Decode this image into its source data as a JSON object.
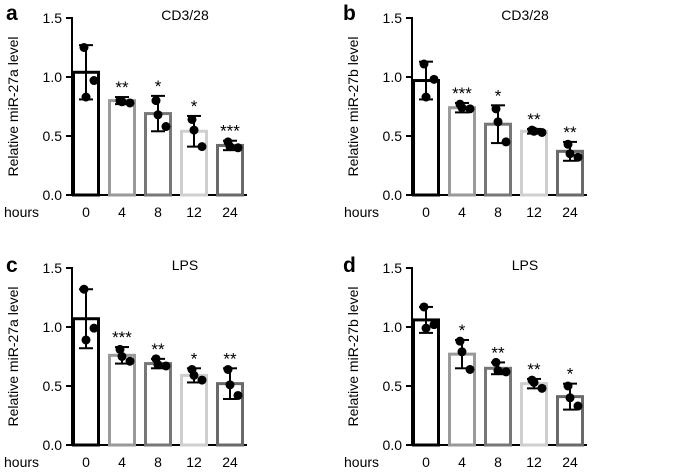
{
  "figure": {
    "x_prefix_label": "hours"
  },
  "chart_data": [
    {
      "type": "bar",
      "panel": "a",
      "title": "CD3/28",
      "ylabel": "Relative miR-27a level",
      "categories": [
        "0",
        "4",
        "8",
        "12",
        "24"
      ],
      "ylim": [
        0,
        1.5
      ],
      "yticks": [
        "0.0",
        "0.5",
        "1.0",
        "1.5"
      ],
      "values": [
        1.04,
        0.8,
        0.69,
        0.54,
        0.42
      ],
      "error": [
        0.23,
        0.03,
        0.15,
        0.13,
        0.04
      ],
      "points": [
        [
          1.25,
          0.97,
          0.83
        ],
        [
          0.8,
          0.78,
          0.79
        ],
        [
          0.8,
          0.58,
          0.68
        ],
        [
          0.64,
          0.41,
          0.55
        ],
        [
          0.45,
          0.4,
          0.41
        ]
      ],
      "significance": [
        "",
        "**",
        "*",
        "*",
        "***"
      ],
      "bar_colors": [
        "#000000",
        "#9a9a9a",
        "#777777",
        "#cfcfcf",
        "#6a6a6a"
      ]
    },
    {
      "type": "bar",
      "panel": "b",
      "title": "CD3/28",
      "ylabel": "Relative miR-27b level",
      "categories": [
        "0",
        "4",
        "8",
        "12",
        "24"
      ],
      "ylim": [
        0,
        1.5
      ],
      "yticks": [
        "0.0",
        "0.5",
        "1.0",
        "1.5"
      ],
      "values": [
        0.97,
        0.74,
        0.6,
        0.54,
        0.37
      ],
      "error": [
        0.16,
        0.04,
        0.16,
        0.02,
        0.08
      ],
      "points": [
        [
          1.11,
          0.98,
          0.83
        ],
        [
          0.77,
          0.73,
          0.74
        ],
        [
          0.73,
          0.45,
          0.62
        ],
        [
          0.55,
          0.53,
          0.54
        ],
        [
          0.43,
          0.32,
          0.35
        ]
      ],
      "significance": [
        "",
        "***",
        "*",
        "**",
        "**"
      ],
      "bar_colors": [
        "#000000",
        "#9a9a9a",
        "#777777",
        "#cfcfcf",
        "#6a6a6a"
      ]
    },
    {
      "type": "bar",
      "panel": "c",
      "title": "LPS",
      "ylabel": "Relative miR-27a level",
      "categories": [
        "0",
        "4",
        "8",
        "12",
        "24"
      ],
      "ylim": [
        0,
        1.5
      ],
      "yticks": [
        "0.0",
        "0.5",
        "1.0",
        "1.5"
      ],
      "values": [
        1.07,
        0.76,
        0.69,
        0.59,
        0.52
      ],
      "error": [
        0.25,
        0.07,
        0.04,
        0.06,
        0.13
      ],
      "points": [
        [
          1.32,
          0.99,
          0.89
        ],
        [
          0.81,
          0.71,
          0.75
        ],
        [
          0.73,
          0.67,
          0.68
        ],
        [
          0.64,
          0.55,
          0.59
        ],
        [
          0.64,
          0.42,
          0.51
        ]
      ],
      "significance": [
        "",
        "***",
        "**",
        "*",
        "**"
      ],
      "bar_colors": [
        "#000000",
        "#9a9a9a",
        "#777777",
        "#cfcfcf",
        "#6a6a6a"
      ]
    },
    {
      "type": "bar",
      "panel": "d",
      "title": "LPS",
      "ylabel": "Relative miR-27b level",
      "categories": [
        "0",
        "4",
        "8",
        "12",
        "24"
      ],
      "ylim": [
        0,
        1.5
      ],
      "yticks": [
        "0.0",
        "0.5",
        "1.0",
        "1.5"
      ],
      "values": [
        1.06,
        0.77,
        0.65,
        0.52,
        0.41
      ],
      "error": [
        0.11,
        0.12,
        0.05,
        0.04,
        0.11
      ],
      "points": [
        [
          1.17,
          1.02,
          0.99
        ],
        [
          0.88,
          0.64,
          0.79
        ],
        [
          0.7,
          0.62,
          0.63
        ],
        [
          0.55,
          0.48,
          0.53
        ],
        [
          0.5,
          0.33,
          0.4
        ]
      ],
      "significance": [
        "",
        "*",
        "**",
        "**",
        "*"
      ],
      "bar_colors": [
        "#000000",
        "#9a9a9a",
        "#777777",
        "#cfcfcf",
        "#6a6a6a"
      ]
    }
  ]
}
